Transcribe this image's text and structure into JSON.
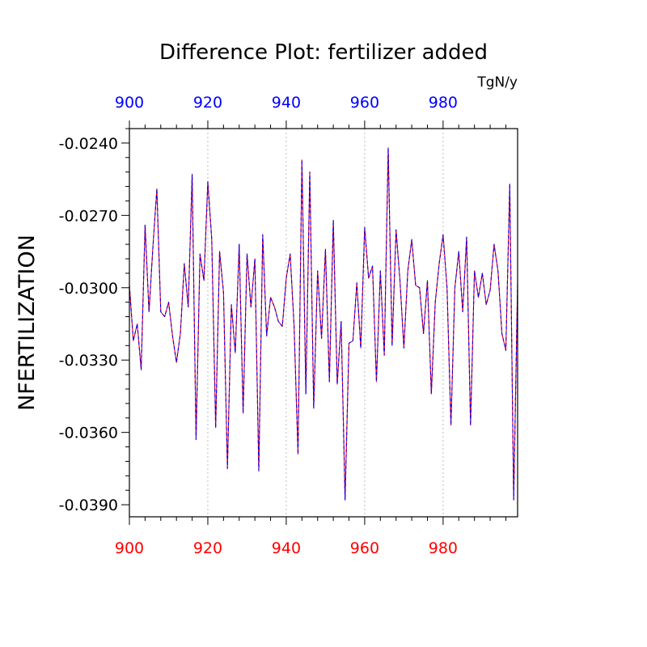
{
  "chart_data": {
    "type": "line",
    "title": "Difference Plot: fertilizer added",
    "ylabel": "NFERTILIZATION",
    "units": "TgN/y",
    "xlim": [
      900,
      999
    ],
    "ylim": [
      -0.0395,
      -0.0234
    ],
    "x_ticks": [
      900,
      920,
      940,
      960,
      980
    ],
    "x_tick_labels": [
      "900",
      "920",
      "940",
      "960",
      "980"
    ],
    "y_ticks": [
      -0.024,
      -0.027,
      -0.03,
      -0.033,
      -0.036,
      -0.039
    ],
    "y_tick_labels": [
      "-0.0240",
      "-0.0270",
      "-0.0300",
      "-0.0330",
      "-0.0360",
      "-0.0390"
    ],
    "colors": {
      "bottom_axis_labels": "#ff0000",
      "top_axis_labels": "#0000ff",
      "series_a": "#ff0000",
      "series_b": "#0000ff",
      "gridline": "#bbbbbb"
    },
    "grid": "vertical dashed at major x ticks",
    "x": [
      900,
      901,
      902,
      903,
      904,
      905,
      906,
      907,
      908,
      909,
      910,
      911,
      912,
      913,
      914,
      915,
      916,
      917,
      918,
      919,
      920,
      921,
      922,
      923,
      924,
      925,
      926,
      927,
      928,
      929,
      930,
      931,
      932,
      933,
      934,
      935,
      936,
      937,
      938,
      939,
      940,
      941,
      942,
      943,
      944,
      945,
      946,
      947,
      948,
      949,
      950,
      951,
      952,
      953,
      954,
      955,
      956,
      957,
      958,
      959,
      960,
      961,
      962,
      963,
      964,
      965,
      966,
      967,
      968,
      969,
      970,
      971,
      972,
      973,
      974,
      975,
      976,
      977,
      978,
      979,
      980,
      981,
      982,
      983,
      984,
      985,
      986,
      987,
      988,
      989,
      990,
      991,
      992,
      993,
      994,
      995,
      996,
      997,
      998,
      999
    ],
    "series": [
      {
        "values": [
          -0.0299,
          -0.0322,
          -0.0315,
          -0.0334,
          -0.0274,
          -0.031,
          -0.0283,
          -0.0259,
          -0.031,
          -0.0312,
          -0.0306,
          -0.032,
          -0.0331,
          -0.0319,
          -0.029,
          -0.0308,
          -0.0253,
          -0.0363,
          -0.0286,
          -0.0297,
          -0.0256,
          -0.028,
          -0.0358,
          -0.0285,
          -0.0302,
          -0.0375,
          -0.0307,
          -0.0327,
          -0.0282,
          -0.0352,
          -0.0286,
          -0.0308,
          -0.0288,
          -0.0376,
          -0.0278,
          -0.032,
          -0.0304,
          -0.0308,
          -0.0314,
          -0.0316,
          -0.0296,
          -0.0286,
          -0.0316,
          -0.0369,
          -0.0247,
          -0.0344,
          -0.0252,
          -0.035,
          -0.0293,
          -0.0321,
          -0.0284,
          -0.0339,
          -0.0272,
          -0.034,
          -0.0314,
          -0.0388,
          -0.0323,
          -0.0322,
          -0.0298,
          -0.0325,
          -0.0275,
          -0.0296,
          -0.0291,
          -0.0339,
          -0.0293,
          -0.0328,
          -0.0242,
          -0.0324,
          -0.0276,
          -0.0297,
          -0.0325,
          -0.0293,
          -0.028,
          -0.0299,
          -0.03,
          -0.0319,
          -0.0297,
          -0.0344,
          -0.0306,
          -0.029,
          -0.0278,
          -0.03,
          -0.0357,
          -0.03,
          -0.0285,
          -0.031,
          -0.0279,
          -0.0357,
          -0.0293,
          -0.0304,
          -0.0294,
          -0.0307,
          -0.0301,
          -0.0282,
          -0.0293,
          -0.0319,
          -0.0326,
          -0.0257,
          -0.0388,
          -0.0298
        ]
      },
      {
        "values": [
          -0.0299,
          -0.0322,
          -0.0315,
          -0.0334,
          -0.0274,
          -0.031,
          -0.0283,
          -0.0259,
          -0.031,
          -0.0312,
          -0.0306,
          -0.032,
          -0.0331,
          -0.0319,
          -0.029,
          -0.0308,
          -0.0253,
          -0.0363,
          -0.0286,
          -0.0297,
          -0.0256,
          -0.028,
          -0.0358,
          -0.0285,
          -0.0302,
          -0.0375,
          -0.0307,
          -0.0327,
          -0.0282,
          -0.0352,
          -0.0286,
          -0.0308,
          -0.0288,
          -0.0376,
          -0.0278,
          -0.032,
          -0.0304,
          -0.0308,
          -0.0314,
          -0.0316,
          -0.0296,
          -0.0286,
          -0.0316,
          -0.0369,
          -0.0247,
          -0.0344,
          -0.0252,
          -0.035,
          -0.0293,
          -0.0321,
          -0.0284,
          -0.0339,
          -0.0272,
          -0.034,
          -0.0314,
          -0.0388,
          -0.0323,
          -0.0322,
          -0.0298,
          -0.0325,
          -0.0275,
          -0.0296,
          -0.0291,
          -0.0339,
          -0.0293,
          -0.0328,
          -0.0242,
          -0.0324,
          -0.0276,
          -0.0297,
          -0.0325,
          -0.0293,
          -0.028,
          -0.0299,
          -0.03,
          -0.0319,
          -0.0297,
          -0.0344,
          -0.0306,
          -0.029,
          -0.0278,
          -0.03,
          -0.0357,
          -0.03,
          -0.0285,
          -0.031,
          -0.0279,
          -0.0357,
          -0.0293,
          -0.0304,
          -0.0294,
          -0.0307,
          -0.0301,
          -0.0282,
          -0.0293,
          -0.0319,
          -0.0326,
          -0.0257,
          -0.0388,
          -0.0298
        ]
      }
    ]
  }
}
